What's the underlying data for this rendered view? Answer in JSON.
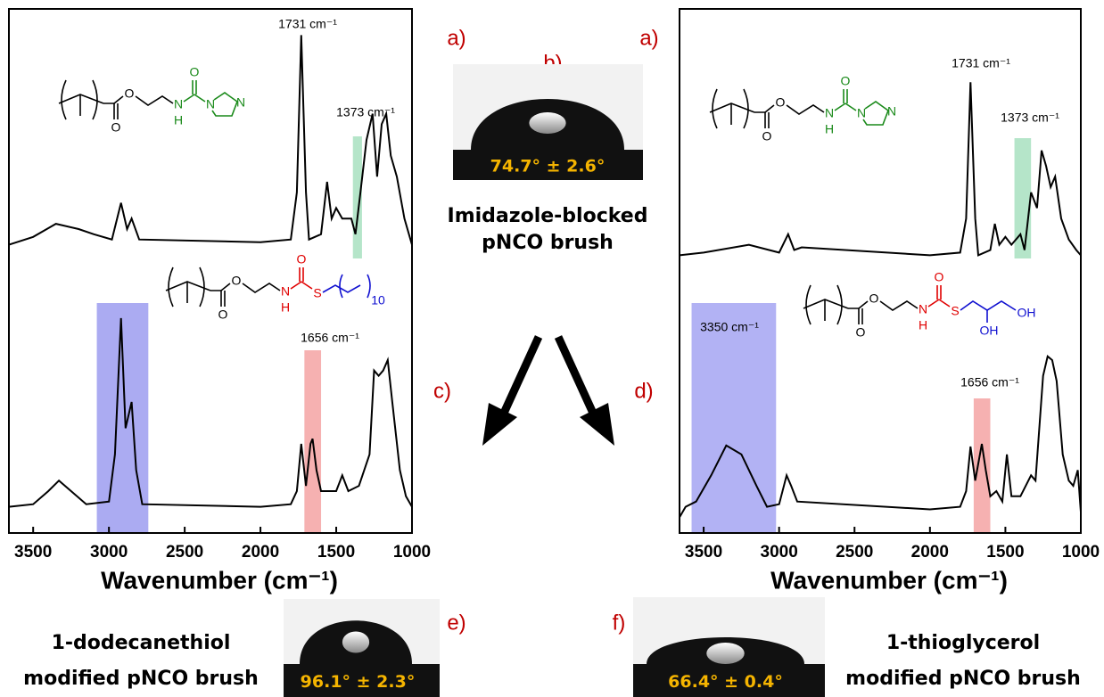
{
  "chart_data": [
    {
      "type": "line",
      "xlabel": "Wavenumber (cm⁻¹)",
      "xlim": [
        3660,
        1000
      ],
      "ylim": [
        0,
        100
      ],
      "xticks": [
        3500,
        3000,
        2500,
        2000,
        1500,
        1000
      ],
      "series": [
        {
          "color": "#000000",
          "x": [
            3660,
            3500,
            3350,
            3200,
            3100,
            2980,
            2920,
            2880,
            2850,
            2800,
            2000,
            1800,
            1760,
            1731,
            1700,
            1680,
            1600,
            1560,
            1530,
            1500,
            1460,
            1400,
            1373,
            1340,
            1300,
            1260,
            1230,
            1200,
            1170,
            1140,
            1100,
            1050,
            1000
          ],
          "values": [
            55,
            56.5,
            59,
            58,
            57,
            56,
            63,
            58,
            60,
            56,
            55.5,
            56,
            65,
            95,
            65,
            56,
            57,
            67,
            60,
            62,
            60,
            60,
            57,
            65,
            75,
            80,
            68,
            78,
            80,
            72,
            68,
            60,
            55
          ]
        },
        {
          "color": "#000000",
          "x": [
            3660,
            3500,
            3400,
            3330,
            3250,
            3150,
            3000,
            2960,
            2920,
            2890,
            2850,
            2820,
            2780,
            2000,
            1800,
            1760,
            1731,
            1700,
            1670,
            1656,
            1630,
            1600,
            1500,
            1460,
            1420,
            1350,
            1280,
            1250,
            1220,
            1190,
            1160,
            1130,
            1080,
            1040,
            1000
          ],
          "values": [
            5,
            5.5,
            8,
            10,
            8,
            5.5,
            6,
            15,
            41,
            20,
            25,
            12,
            5.5,
            5,
            5.5,
            8,
            17,
            9,
            17,
            18,
            12,
            8,
            8,
            11,
            8,
            9,
            15,
            31,
            30,
            31,
            33,
            25,
            12,
            7,
            5
          ]
        }
      ],
      "bands": [
        {
          "color": "#9c9cf0",
          "x": [
            3080,
            2740
          ]
        },
        {
          "color": "#f5a3a3",
          "x": [
            1710,
            1600
          ]
        },
        {
          "color": "#a8e0c0",
          "x": [
            1390,
            1330
          ]
        }
      ],
      "annotations": [
        "1731 cm⁻¹",
        "1373 cm⁻¹",
        "1656 cm⁻¹"
      ]
    },
    {
      "type": "line",
      "xlabel": "Wavenumber (cm⁻¹)",
      "xlim": [
        3660,
        1000
      ],
      "ylim": [
        0,
        100
      ],
      "xticks": [
        3500,
        3000,
        2500,
        2000,
        1500,
        1000
      ],
      "series": [
        {
          "color": "#000000",
          "x": [
            3660,
            3500,
            3200,
            3000,
            2940,
            2900,
            2850,
            2000,
            1800,
            1760,
            1731,
            1700,
            1680,
            1600,
            1570,
            1540,
            1500,
            1460,
            1400,
            1373,
            1330,
            1290,
            1260,
            1230,
            1200,
            1170,
            1130,
            1080,
            1030,
            1000
          ],
          "values": [
            53,
            53.5,
            55,
            53.5,
            57,
            54,
            54.5,
            53,
            53.5,
            60,
            86,
            60,
            53,
            54,
            59,
            55,
            56.5,
            55,
            57,
            54,
            65,
            62,
            73,
            70,
            66,
            68,
            60,
            56,
            54,
            53
          ]
        },
        {
          "color": "#000000",
          "x": [
            3660,
            3620,
            3550,
            3450,
            3350,
            3250,
            3150,
            3080,
            3000,
            2950,
            2920,
            2880,
            2000,
            1800,
            1760,
            1731,
            1700,
            1656,
            1630,
            1600,
            1560,
            1520,
            1490,
            1460,
            1400,
            1330,
            1300,
            1250,
            1220,
            1190,
            1160,
            1120,
            1080,
            1050,
            1020,
            1000
          ],
          "values": [
            3,
            5,
            6,
            11,
            16.7,
            15,
            9,
            5,
            5.5,
            11,
            9,
            6,
            4.5,
            5,
            8,
            16.5,
            10,
            17,
            12,
            7,
            8,
            6,
            15,
            7,
            7,
            11,
            10,
            30,
            33.7,
            33,
            29,
            15,
            10,
            9,
            12,
            4
          ]
        }
      ],
      "bands": [
        {
          "color": "#a4a4f2",
          "x": [
            3580,
            3020
          ]
        },
        {
          "color": "#f5a3a3",
          "x": [
            1710,
            1600
          ]
        },
        {
          "color": "#a8e0c0",
          "x": [
            1440,
            1330
          ]
        }
      ],
      "annotations": [
        "1731 cm⁻¹",
        "1373 cm⁻¹",
        "3350 cm⁻¹",
        "1656 cm⁻¹"
      ]
    }
  ],
  "panels": [
    "a)",
    "b)",
    "a)",
    "c)",
    "d)",
    "e)",
    "f)"
  ],
  "contact_angles": [
    "74.7° ± 2.6°",
    "96.1° ± 2.3°",
    "66.4° ± 0.4°"
  ],
  "captions": [
    [
      "Imidazole-blocked",
      "pNCO brush"
    ],
    [
      "1-dodecanethiol",
      "modified pNCO brush"
    ],
    [
      "1-thioglycerol",
      "modified pNCO brush"
    ]
  ],
  "structures": [
    {
      "labels": [
        "O",
        "O",
        "N",
        "H",
        "O",
        "N",
        "N"
      ]
    },
    {
      "labels": [
        "O",
        "O",
        "N",
        "H",
        "O",
        "S",
        "10"
      ]
    },
    {
      "labels": [
        "O",
        "O",
        "N",
        "H",
        "O",
        "N",
        "N"
      ]
    },
    {
      "labels": [
        "O",
        "O",
        "N",
        "H",
        "O",
        "S",
        "OH",
        "OH"
      ]
    }
  ]
}
